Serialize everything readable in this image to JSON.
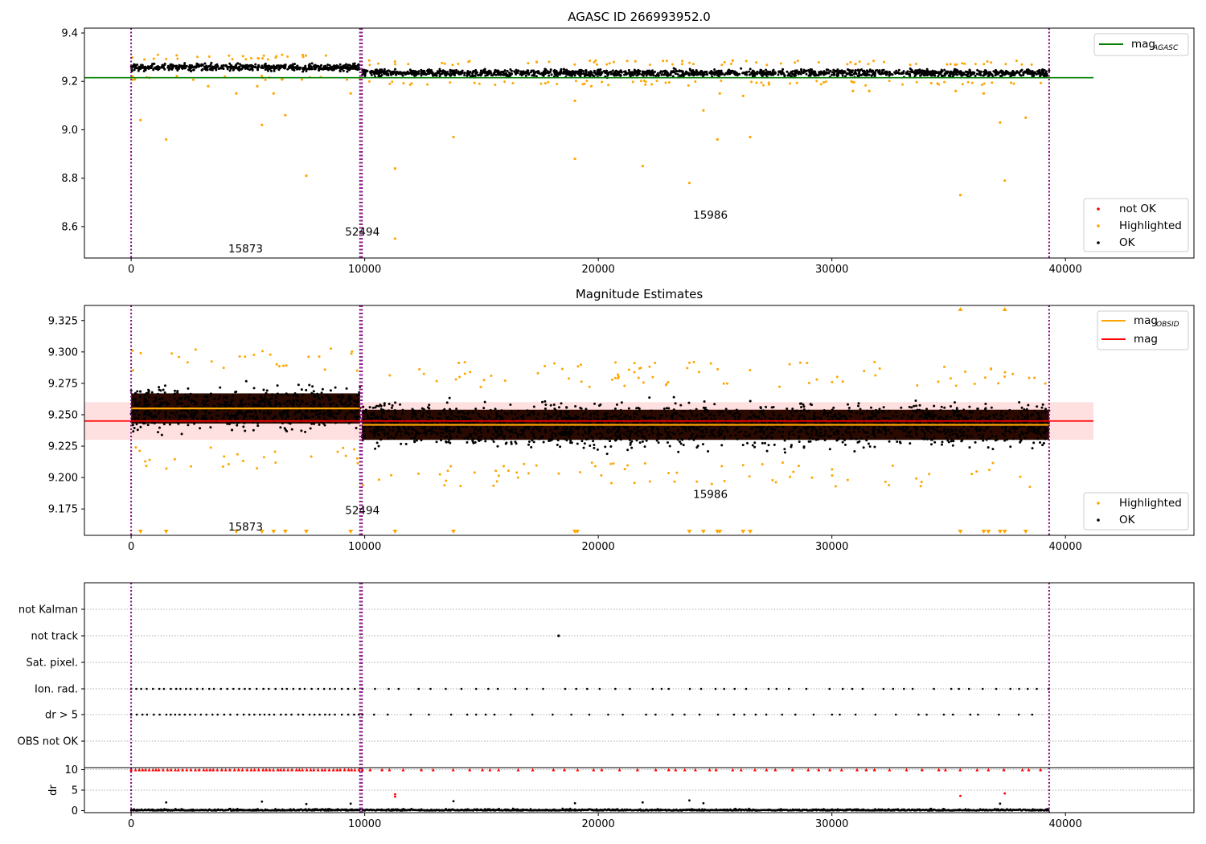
{
  "chart_data": [
    {
      "type": "scatter",
      "title": "AGASC ID 266993952.0",
      "xlim": [
        -2000,
        45500
      ],
      "ylim": [
        8.47,
        9.42
      ],
      "xticks": [
        "0",
        "10000",
        "20000",
        "30000",
        "40000"
      ],
      "xtick_values": [
        0,
        10000,
        20000,
        30000,
        40000
      ],
      "yticks": [
        "8.6",
        "8.8",
        "9.0",
        "9.2",
        "9.4"
      ],
      "ytick_values": [
        8.6,
        8.8,
        9.0,
        9.2,
        9.4
      ],
      "obs_boundaries": [
        0,
        9800,
        9880,
        39300
      ],
      "obs_labels": [
        {
          "text": "15873",
          "x": 4900,
          "y": 8.51
        },
        {
          "text": "52494",
          "x": 9900,
          "y": 8.58
        },
        {
          "text": "15986",
          "x": 24800,
          "y": 8.65
        }
      ],
      "reference_lines": [
        {
          "name": "mag",
          "subscript": "AGASC",
          "y": 9.215,
          "x_range": [
            -2000,
            41200
          ],
          "color": "#008000"
        }
      ],
      "series": [
        {
          "name": "not OK",
          "color": "#ff0000"
        },
        {
          "name": "Highlighted",
          "color": "#ffa500",
          "points": [
            [
              400,
              9.04
            ],
            [
              1500,
              8.96
            ],
            [
              4500,
              9.15
            ],
            [
              5600,
              9.02
            ],
            [
              6600,
              9.06
            ],
            [
              7500,
              8.81
            ],
            [
              9400,
              9.15
            ],
            [
              11300,
              8.84
            ],
            [
              11300,
              8.55
            ],
            [
              13800,
              8.97
            ],
            [
              19000,
              8.88
            ],
            [
              21900,
              8.85
            ],
            [
              23900,
              8.78
            ],
            [
              24500,
              9.08
            ],
            [
              25100,
              8.96
            ],
            [
              26500,
              8.97
            ],
            [
              35500,
              8.73
            ],
            [
              37200,
              9.03
            ],
            [
              37400,
              8.79
            ],
            [
              38300,
              9.05
            ],
            [
              3300,
              9.18
            ],
            [
              5400,
              9.18
            ],
            [
              6100,
              9.15
            ],
            [
              19000,
              9.12
            ],
            [
              19700,
              9.18
            ],
            [
              25200,
              9.15
            ],
            [
              26200,
              9.14
            ],
            [
              30900,
              9.16
            ],
            [
              31600,
              9.16
            ],
            [
              35300,
              9.16
            ],
            [
              36500,
              9.15
            ]
          ]
        },
        {
          "name": "OK",
          "color": "#000000",
          "segments": [
            {
              "x": [
                0,
                9800
              ],
              "y_center": 9.258,
              "y_spread": 0.025
            },
            {
              "x": [
                9880,
                39300
              ],
              "y_center": 9.235,
              "y_spread": 0.025
            }
          ]
        }
      ],
      "legends": [
        {
          "position": "top-right",
          "entries": [
            "mag_AGASC"
          ]
        },
        {
          "position": "lower-right",
          "entries": [
            "not OK",
            "Highlighted",
            "OK"
          ]
        }
      ]
    },
    {
      "type": "scatter",
      "title": "Magnitude Estimates",
      "xlim": [
        -2000,
        45500
      ],
      "ylim": [
        9.154,
        9.337
      ],
      "xticks": [
        "0",
        "10000",
        "20000",
        "30000",
        "40000"
      ],
      "xtick_values": [
        0,
        10000,
        20000,
        30000,
        40000
      ],
      "yticks": [
        "9.175",
        "9.200",
        "9.225",
        "9.250",
        "9.275",
        "9.300",
        "9.325"
      ],
      "ytick_values": [
        9.175,
        9.2,
        9.225,
        9.25,
        9.275,
        9.3,
        9.325
      ],
      "obs_boundaries": [
        0,
        9800,
        9880,
        39300
      ],
      "obs_labels": [
        {
          "text": "15873",
          "x": 4900,
          "y": 9.161
        },
        {
          "text": "52494",
          "x": 9900,
          "y": 9.174
        },
        {
          "text": "15986",
          "x": 24800,
          "y": 9.187
        }
      ],
      "mag_obsid": [
        {
          "x": [
            0,
            9800
          ],
          "y": 9.255
        },
        {
          "x": [
            9880,
            39300
          ],
          "y": 9.242
        }
      ],
      "mag": {
        "y": 9.245,
        "band": [
          9.23,
          9.26
        ],
        "x_range": [
          -2000,
          41200
        ]
      },
      "series": [
        {
          "name": "Highlighted",
          "color": "#ffa500"
        },
        {
          "name": "OK",
          "color": "#000000"
        }
      ],
      "legends": [
        {
          "position": "top-right",
          "entries": [
            "mag_OBSID",
            "mag"
          ]
        },
        {
          "position": "lower-right",
          "entries": [
            "Highlighted",
            "OK"
          ]
        }
      ]
    },
    {
      "type": "scatter",
      "title": "",
      "xlim": [
        -2000,
        45500
      ],
      "categories": [
        "not Kalman",
        "not track",
        "Sat. pixel.",
        "Ion. rad.",
        "dr > 5",
        "OBS not OK"
      ],
      "flag_points": {
        "not track": [
          18300
        ],
        "Ion. rad.": "periodic",
        "dr > 5": "periodic"
      },
      "obs_boundaries": [
        0,
        9800,
        9880,
        39300
      ]
    },
    {
      "type": "scatter",
      "title": "",
      "xlim": [
        -2000,
        45500
      ],
      "ylim": [
        -0.5,
        10.5
      ],
      "ylabel": "dr",
      "xticks": [
        "0",
        "10000",
        "20000",
        "30000",
        "40000"
      ],
      "xtick_values": [
        0,
        10000,
        20000,
        30000,
        40000
      ],
      "yticks": [
        "0",
        "5",
        "10"
      ],
      "ytick_values": [
        0,
        5,
        10
      ],
      "red_markers_y": 10,
      "obs_boundaries": [
        0,
        9800,
        9880,
        39300
      ]
    }
  ]
}
